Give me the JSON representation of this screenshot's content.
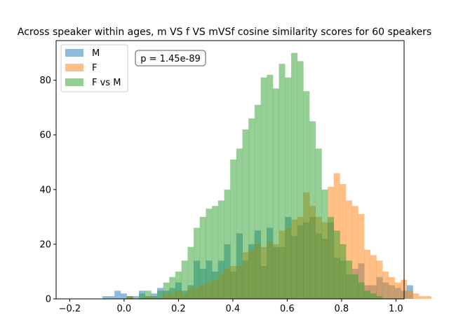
{
  "chart_data": {
    "type": "histogram",
    "title": "Across speaker within ages, m VS f VS mVSf cosine similarity scores for 60 speakers",
    "xlabel": "",
    "ylabel": "",
    "xlim": [
      -0.25,
      1.03
    ],
    "ylim": [
      0,
      94.5
    ],
    "x_ticks": [
      "−0.2",
      "0.0",
      "0.2",
      "0.4",
      "0.6",
      "0.8",
      "1.0"
    ],
    "x_tick_values": [
      -0.2,
      0.0,
      0.2,
      0.4,
      0.6,
      0.8,
      1.0
    ],
    "y_ticks": [
      "0",
      "20",
      "40",
      "60",
      "80"
    ],
    "y_tick_values": [
      0,
      20,
      40,
      60,
      80
    ],
    "annotation": "p = 1.45e-89",
    "legend": {
      "position": "top-left",
      "entries": [
        "M",
        "F",
        "F vs M"
      ]
    },
    "bins": {
      "start": -0.08,
      "width": 0.0224,
      "count": 54
    },
    "series": [
      {
        "name": "M",
        "color": "#1f77b4",
        "alpha": 0.5,
        "counts": [
          1,
          1,
          3,
          2,
          1,
          1,
          3,
          1,
          2,
          4,
          3,
          4,
          6,
          3,
          5,
          14,
          11,
          14,
          10,
          14,
          20,
          10,
          24,
          14,
          20,
          25,
          12,
          26,
          19,
          19,
          30,
          23,
          27,
          28,
          30,
          24,
          22,
          28,
          15,
          14,
          9,
          11,
          13,
          5,
          5,
          8,
          6,
          5,
          4,
          3,
          5,
          0,
          0,
          0
        ]
      },
      {
        "name": "F",
        "color": "#ff7f0e",
        "alpha": 0.5,
        "counts": [
          0,
          0,
          0,
          0,
          1,
          0,
          0,
          1,
          1,
          0,
          2,
          2,
          3,
          2,
          4,
          4,
          5,
          6,
          7,
          9,
          11,
          12,
          12,
          17,
          18,
          20,
          19,
          21,
          20,
          25,
          26,
          29,
          30,
          39,
          34,
          30,
          28,
          41,
          46,
          42,
          36,
          34,
          31,
          18,
          16,
          14,
          10,
          8,
          6,
          7,
          3,
          2,
          1,
          1
        ]
      },
      {
        "name": "F vs M",
        "color": "#2ca02c",
        "alpha": 0.5,
        "counts": [
          0,
          0,
          0,
          0,
          1,
          0,
          2,
          3,
          1,
          3,
          6,
          8,
          10,
          14,
          19,
          26,
          30,
          33,
          34,
          36,
          40,
          51,
          55,
          62,
          66,
          71,
          81,
          82,
          77,
          86,
          81,
          90,
          87,
          76,
          65,
          55,
          40,
          30,
          25,
          20,
          14,
          9,
          6,
          3,
          2,
          1,
          0,
          0,
          0,
          0,
          0,
          0,
          0,
          0
        ]
      }
    ]
  }
}
